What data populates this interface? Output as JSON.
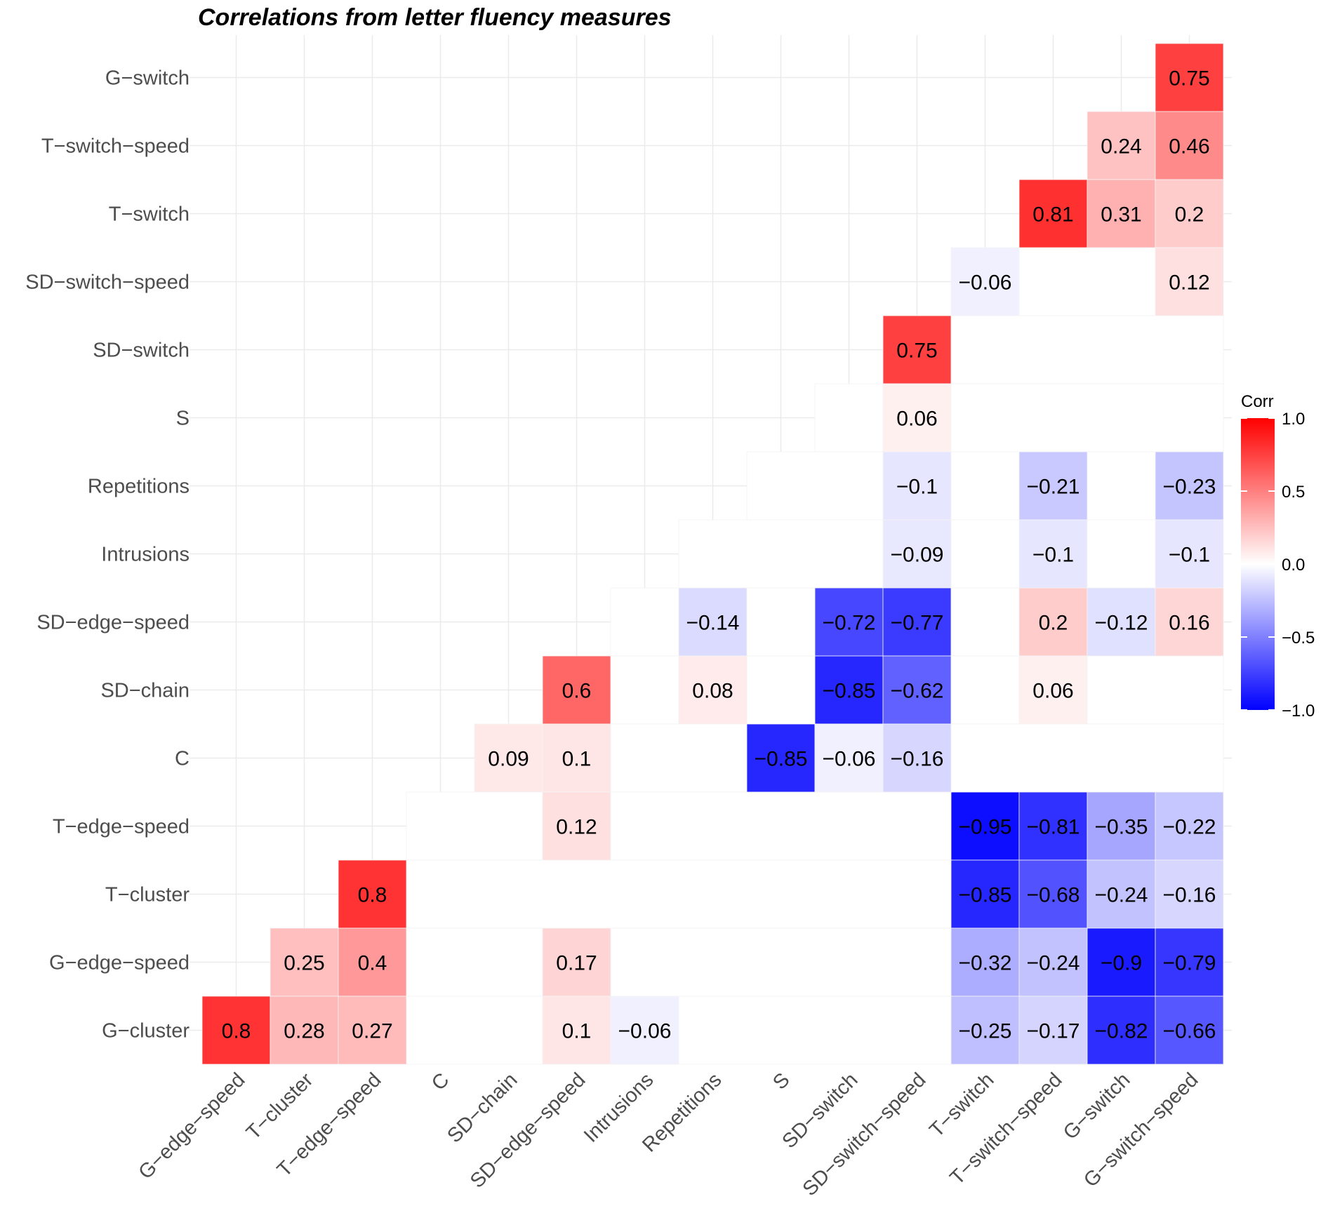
{
  "chart_data": {
    "type": "heatmap",
    "title": "Correlations from letter fluency measures",
    "x_labels": [
      "G−edge−speed",
      "T−cluster",
      "T−edge−speed",
      "C",
      "SD−chain",
      "SD−edge−speed",
      "Intrusions",
      "Repetitions",
      "S",
      "SD−switch",
      "SD−switch−speed",
      "T−switch",
      "T−switch−speed",
      "G−switch",
      "G−switch−speed"
    ],
    "y_labels_top_to_bottom": [
      "G−switch",
      "T−switch−speed",
      "T−switch",
      "SD−switch−speed",
      "SD−switch",
      "S",
      "Repetitions",
      "Intrusions",
      "SD−edge−speed",
      "SD−chain",
      "C",
      "T−edge−speed",
      "T−cluster",
      "G−edge−speed",
      "G−cluster"
    ],
    "cells": [
      {
        "row": "G−switch",
        "col": "G−switch−speed",
        "value": 0.75,
        "label": "0.75"
      },
      {
        "row": "T−switch−speed",
        "col": "G−switch",
        "value": 0.24,
        "label": "0.24"
      },
      {
        "row": "T−switch−speed",
        "col": "G−switch−speed",
        "value": 0.46,
        "label": "0.46"
      },
      {
        "row": "T−switch",
        "col": "T−switch−speed",
        "value": 0.81,
        "label": "0.81"
      },
      {
        "row": "T−switch",
        "col": "G−switch",
        "value": 0.31,
        "label": "0.31"
      },
      {
        "row": "T−switch",
        "col": "G−switch−speed",
        "value": 0.2,
        "label": "0.2"
      },
      {
        "row": "SD−switch−speed",
        "col": "T−switch",
        "value": -0.06,
        "label": "−0.06"
      },
      {
        "row": "SD−switch−speed",
        "col": "G−switch−speed",
        "value": 0.12,
        "label": "0.12"
      },
      {
        "row": "SD−switch",
        "col": "SD−switch−speed",
        "value": 0.75,
        "label": "0.75"
      },
      {
        "row": "S",
        "col": "SD−switch−speed",
        "value": 0.06,
        "label": "0.06"
      },
      {
        "row": "Repetitions",
        "col": "SD−switch−speed",
        "value": -0.1,
        "label": "−0.1"
      },
      {
        "row": "Repetitions",
        "col": "T−switch−speed",
        "value": -0.21,
        "label": "−0.21"
      },
      {
        "row": "Repetitions",
        "col": "G−switch−speed",
        "value": -0.23,
        "label": "−0.23"
      },
      {
        "row": "Intrusions",
        "col": "SD−switch−speed",
        "value": -0.09,
        "label": "−0.09"
      },
      {
        "row": "Intrusions",
        "col": "T−switch−speed",
        "value": -0.1,
        "label": "−0.1"
      },
      {
        "row": "Intrusions",
        "col": "G−switch−speed",
        "value": -0.1,
        "label": "−0.1"
      },
      {
        "row": "SD−edge−speed",
        "col": "Repetitions",
        "value": -0.14,
        "label": "−0.14"
      },
      {
        "row": "SD−edge−speed",
        "col": "SD−switch",
        "value": -0.72,
        "label": "−0.72"
      },
      {
        "row": "SD−edge−speed",
        "col": "SD−switch−speed",
        "value": -0.77,
        "label": "−0.77"
      },
      {
        "row": "SD−edge−speed",
        "col": "T−switch−speed",
        "value": 0.2,
        "label": "0.2"
      },
      {
        "row": "SD−edge−speed",
        "col": "G−switch",
        "value": -0.12,
        "label": "−0.12"
      },
      {
        "row": "SD−edge−speed",
        "col": "G−switch−speed",
        "value": 0.16,
        "label": "0.16"
      },
      {
        "row": "SD−chain",
        "col": "SD−edge−speed",
        "value": 0.6,
        "label": "0.6"
      },
      {
        "row": "SD−chain",
        "col": "Repetitions",
        "value": 0.08,
        "label": "0.08"
      },
      {
        "row": "SD−chain",
        "col": "SD−switch",
        "value": -0.85,
        "label": "−0.85"
      },
      {
        "row": "SD−chain",
        "col": "SD−switch−speed",
        "value": -0.62,
        "label": "−0.62"
      },
      {
        "row": "SD−chain",
        "col": "T−switch−speed",
        "value": 0.06,
        "label": "0.06"
      },
      {
        "row": "C",
        "col": "SD−chain",
        "value": 0.09,
        "label": "0.09"
      },
      {
        "row": "C",
        "col": "SD−edge−speed",
        "value": 0.1,
        "label": "0.1"
      },
      {
        "row": "C",
        "col": "S",
        "value": -0.85,
        "label": "−0.85"
      },
      {
        "row": "C",
        "col": "SD−switch",
        "value": -0.06,
        "label": "−0.06"
      },
      {
        "row": "C",
        "col": "SD−switch−speed",
        "value": -0.16,
        "label": "−0.16"
      },
      {
        "row": "T−edge−speed",
        "col": "SD−edge−speed",
        "value": 0.12,
        "label": "0.12"
      },
      {
        "row": "T−edge−speed",
        "col": "T−switch",
        "value": -0.95,
        "label": "−0.95"
      },
      {
        "row": "T−edge−speed",
        "col": "T−switch−speed",
        "value": -0.81,
        "label": "−0.81"
      },
      {
        "row": "T−edge−speed",
        "col": "G−switch",
        "value": -0.35,
        "label": "−0.35"
      },
      {
        "row": "T−edge−speed",
        "col": "G−switch−speed",
        "value": -0.22,
        "label": "−0.22"
      },
      {
        "row": "T−cluster",
        "col": "T−edge−speed",
        "value": 0.8,
        "label": "0.8"
      },
      {
        "row": "T−cluster",
        "col": "T−switch",
        "value": -0.85,
        "label": "−0.85"
      },
      {
        "row": "T−cluster",
        "col": "T−switch−speed",
        "value": -0.68,
        "label": "−0.68"
      },
      {
        "row": "T−cluster",
        "col": "G−switch",
        "value": -0.24,
        "label": "−0.24"
      },
      {
        "row": "T−cluster",
        "col": "G−switch−speed",
        "value": -0.16,
        "label": "−0.16"
      },
      {
        "row": "G−edge−speed",
        "col": "T−cluster",
        "value": 0.25,
        "label": "0.25"
      },
      {
        "row": "G−edge−speed",
        "col": "T−edge−speed",
        "value": 0.4,
        "label": "0.4"
      },
      {
        "row": "G−edge−speed",
        "col": "SD−edge−speed",
        "value": 0.17,
        "label": "0.17"
      },
      {
        "row": "G−edge−speed",
        "col": "T−switch",
        "value": -0.32,
        "label": "−0.32"
      },
      {
        "row": "G−edge−speed",
        "col": "T−switch−speed",
        "value": -0.24,
        "label": "−0.24"
      },
      {
        "row": "G−edge−speed",
        "col": "G−switch",
        "value": -0.9,
        "label": "−0.9"
      },
      {
        "row": "G−edge−speed",
        "col": "G−switch−speed",
        "value": -0.79,
        "label": "−0.79"
      },
      {
        "row": "G−cluster",
        "col": "G−edge−speed",
        "value": 0.8,
        "label": "0.8"
      },
      {
        "row": "G−cluster",
        "col": "T−cluster",
        "value": 0.28,
        "label": "0.28"
      },
      {
        "row": "G−cluster",
        "col": "T−edge−speed",
        "value": 0.27,
        "label": "0.27"
      },
      {
        "row": "G−cluster",
        "col": "SD−edge−speed",
        "value": 0.1,
        "label": "0.1"
      },
      {
        "row": "G−cluster",
        "col": "Intrusions",
        "value": -0.06,
        "label": "−0.06"
      },
      {
        "row": "G−cluster",
        "col": "T−switch",
        "value": -0.25,
        "label": "−0.25"
      },
      {
        "row": "G−cluster",
        "col": "T−switch−speed",
        "value": -0.17,
        "label": "−0.17"
      },
      {
        "row": "G−cluster",
        "col": "G−switch",
        "value": -0.82,
        "label": "−0.82"
      },
      {
        "row": "G−cluster",
        "col": "G−switch−speed",
        "value": -0.66,
        "label": "−0.66"
      }
    ],
    "legend": {
      "title": "Corr",
      "range": [
        -1.0,
        1.0
      ],
      "ticks": [
        1.0,
        0.5,
        0.0,
        -0.5,
        -1.0
      ],
      "tick_labels": [
        "1.0",
        "0.5",
        "0.0",
        "−0.5",
        "−1.0"
      ],
      "placement": "right"
    },
    "colors": {
      "high": "#ff0000",
      "mid": "#ffffff",
      "low": "#0000ff",
      "grid": "#ebebeb",
      "axis_text": "#4d4d4d"
    }
  }
}
